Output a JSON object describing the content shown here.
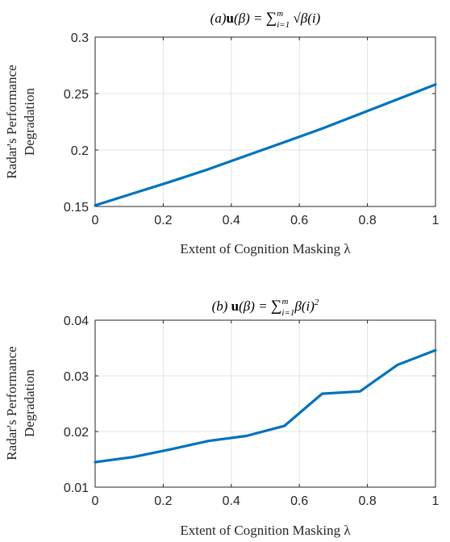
{
  "chart_data": [
    {
      "type": "line",
      "title": "(a)u(β) = Σ_{i=1}^m √β(i)",
      "title_parts": {
        "label": "(a)",
        "u": "u",
        "arg": "(β) = ",
        "sum": "∑",
        "sup": "m",
        "sub": "i=1",
        "body": " √β(i)"
      },
      "xlabel": "Extent of Cognition Masking λ",
      "ylabel": [
        "Radar's Performance",
        "Degradation"
      ],
      "xlim": [
        0,
        1
      ],
      "ylim": [
        0.15,
        0.3
      ],
      "xticks": [
        "0",
        "0.2",
        "0.4",
        "0.6",
        "0.8",
        "1"
      ],
      "yticks": [
        "0.15",
        "0.2",
        "0.25",
        "0.3"
      ],
      "grid": true,
      "color": "#0072bd",
      "x": [
        0,
        0.111,
        0.222,
        0.333,
        0.444,
        0.556,
        0.667,
        0.778,
        0.889,
        1.0
      ],
      "y": [
        0.151,
        0.1615,
        0.172,
        0.183,
        0.195,
        0.207,
        0.219,
        0.232,
        0.245,
        0.258
      ]
    },
    {
      "type": "line",
      "title": "(b) u(β) = Σ_{i=1}^m β(i)^2",
      "title_parts": {
        "label": "(b) ",
        "u": "u",
        "arg": "(β) = ",
        "sum": "∑",
        "sup": "m",
        "sub": "i=1",
        "body": "β(i)",
        "exp": "2"
      },
      "xlabel": "Extent of Cognition Masking λ",
      "ylabel": [
        "Radar's Performance",
        "Degradation"
      ],
      "xlim": [
        0,
        1
      ],
      "ylim": [
        0.01,
        0.04
      ],
      "xticks": [
        "0",
        "0.2",
        "0.4",
        "0.6",
        "0.8",
        "1"
      ],
      "yticks": [
        "0.01",
        "0.02",
        "0.03",
        "0.04"
      ],
      "grid": true,
      "color": "#0072bd",
      "x": [
        0,
        0.111,
        0.222,
        0.333,
        0.444,
        0.556,
        0.667,
        0.778,
        0.889,
        1.0
      ],
      "y": [
        0.0145,
        0.0154,
        0.0168,
        0.0183,
        0.0192,
        0.021,
        0.0268,
        0.0272,
        0.032,
        0.0346
      ]
    }
  ]
}
